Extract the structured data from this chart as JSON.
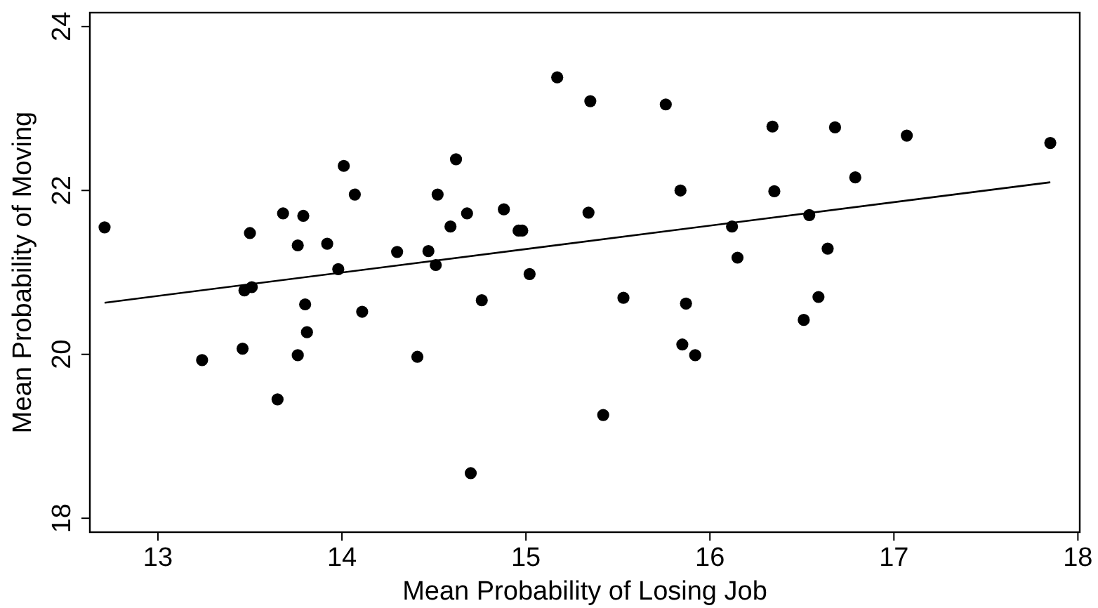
{
  "chart_data": {
    "type": "scatter",
    "xlabel": "Mean Probability of Losing Job",
    "ylabel": "Mean Probability of Moving",
    "xlim": [
      12.63,
      18.01
    ],
    "ylim": [
      17.83,
      24.17
    ],
    "xticks": [
      13,
      14,
      15,
      16,
      17,
      18
    ],
    "yticks": [
      18,
      20,
      22,
      24
    ],
    "grid": false,
    "series": [
      {
        "color": "#000000",
        "marker": "circle",
        "x": [
          12.71,
          13.24,
          13.46,
          13.5,
          13.47,
          13.51,
          13.65,
          13.68,
          13.76,
          13.79,
          13.76,
          13.8,
          13.81,
          13.92,
          13.98,
          14.01,
          14.07,
          14.11,
          14.3,
          14.41,
          14.47,
          14.51,
          14.52,
          14.59,
          14.62,
          14.68,
          14.7,
          14.76,
          14.88,
          14.96,
          14.98,
          15.02,
          15.17,
          15.35,
          15.34,
          15.53,
          15.42,
          15.76,
          15.84,
          15.87,
          15.85,
          15.92,
          16.12,
          16.15,
          16.34,
          16.35,
          16.51,
          16.54,
          16.59,
          16.64,
          16.68,
          16.79,
          17.07,
          17.85
        ],
        "values": [
          21.55,
          19.93,
          20.07,
          21.48,
          20.78,
          20.82,
          19.45,
          21.72,
          21.33,
          21.69,
          19.99,
          20.61,
          20.27,
          21.35,
          21.04,
          22.3,
          21.95,
          20.52,
          21.25,
          19.97,
          21.26,
          21.09,
          21.95,
          21.56,
          22.38,
          21.72,
          18.55,
          20.66,
          21.77,
          21.51,
          21.51,
          20.98,
          23.38,
          23.09,
          21.73,
          20.69,
          19.26,
          23.05,
          22.0,
          20.62,
          20.12,
          19.99,
          21.56,
          21.18,
          22.78,
          21.99,
          20.42,
          21.7,
          20.7,
          21.29,
          22.77,
          22.16,
          22.67,
          22.58
        ]
      },
      {
        "type": "line",
        "color": "#000000",
        "marker": "none",
        "line_style": "solid",
        "x": [
          12.71,
          17.85
        ],
        "values": [
          20.63,
          22.1
        ]
      }
    ]
  }
}
